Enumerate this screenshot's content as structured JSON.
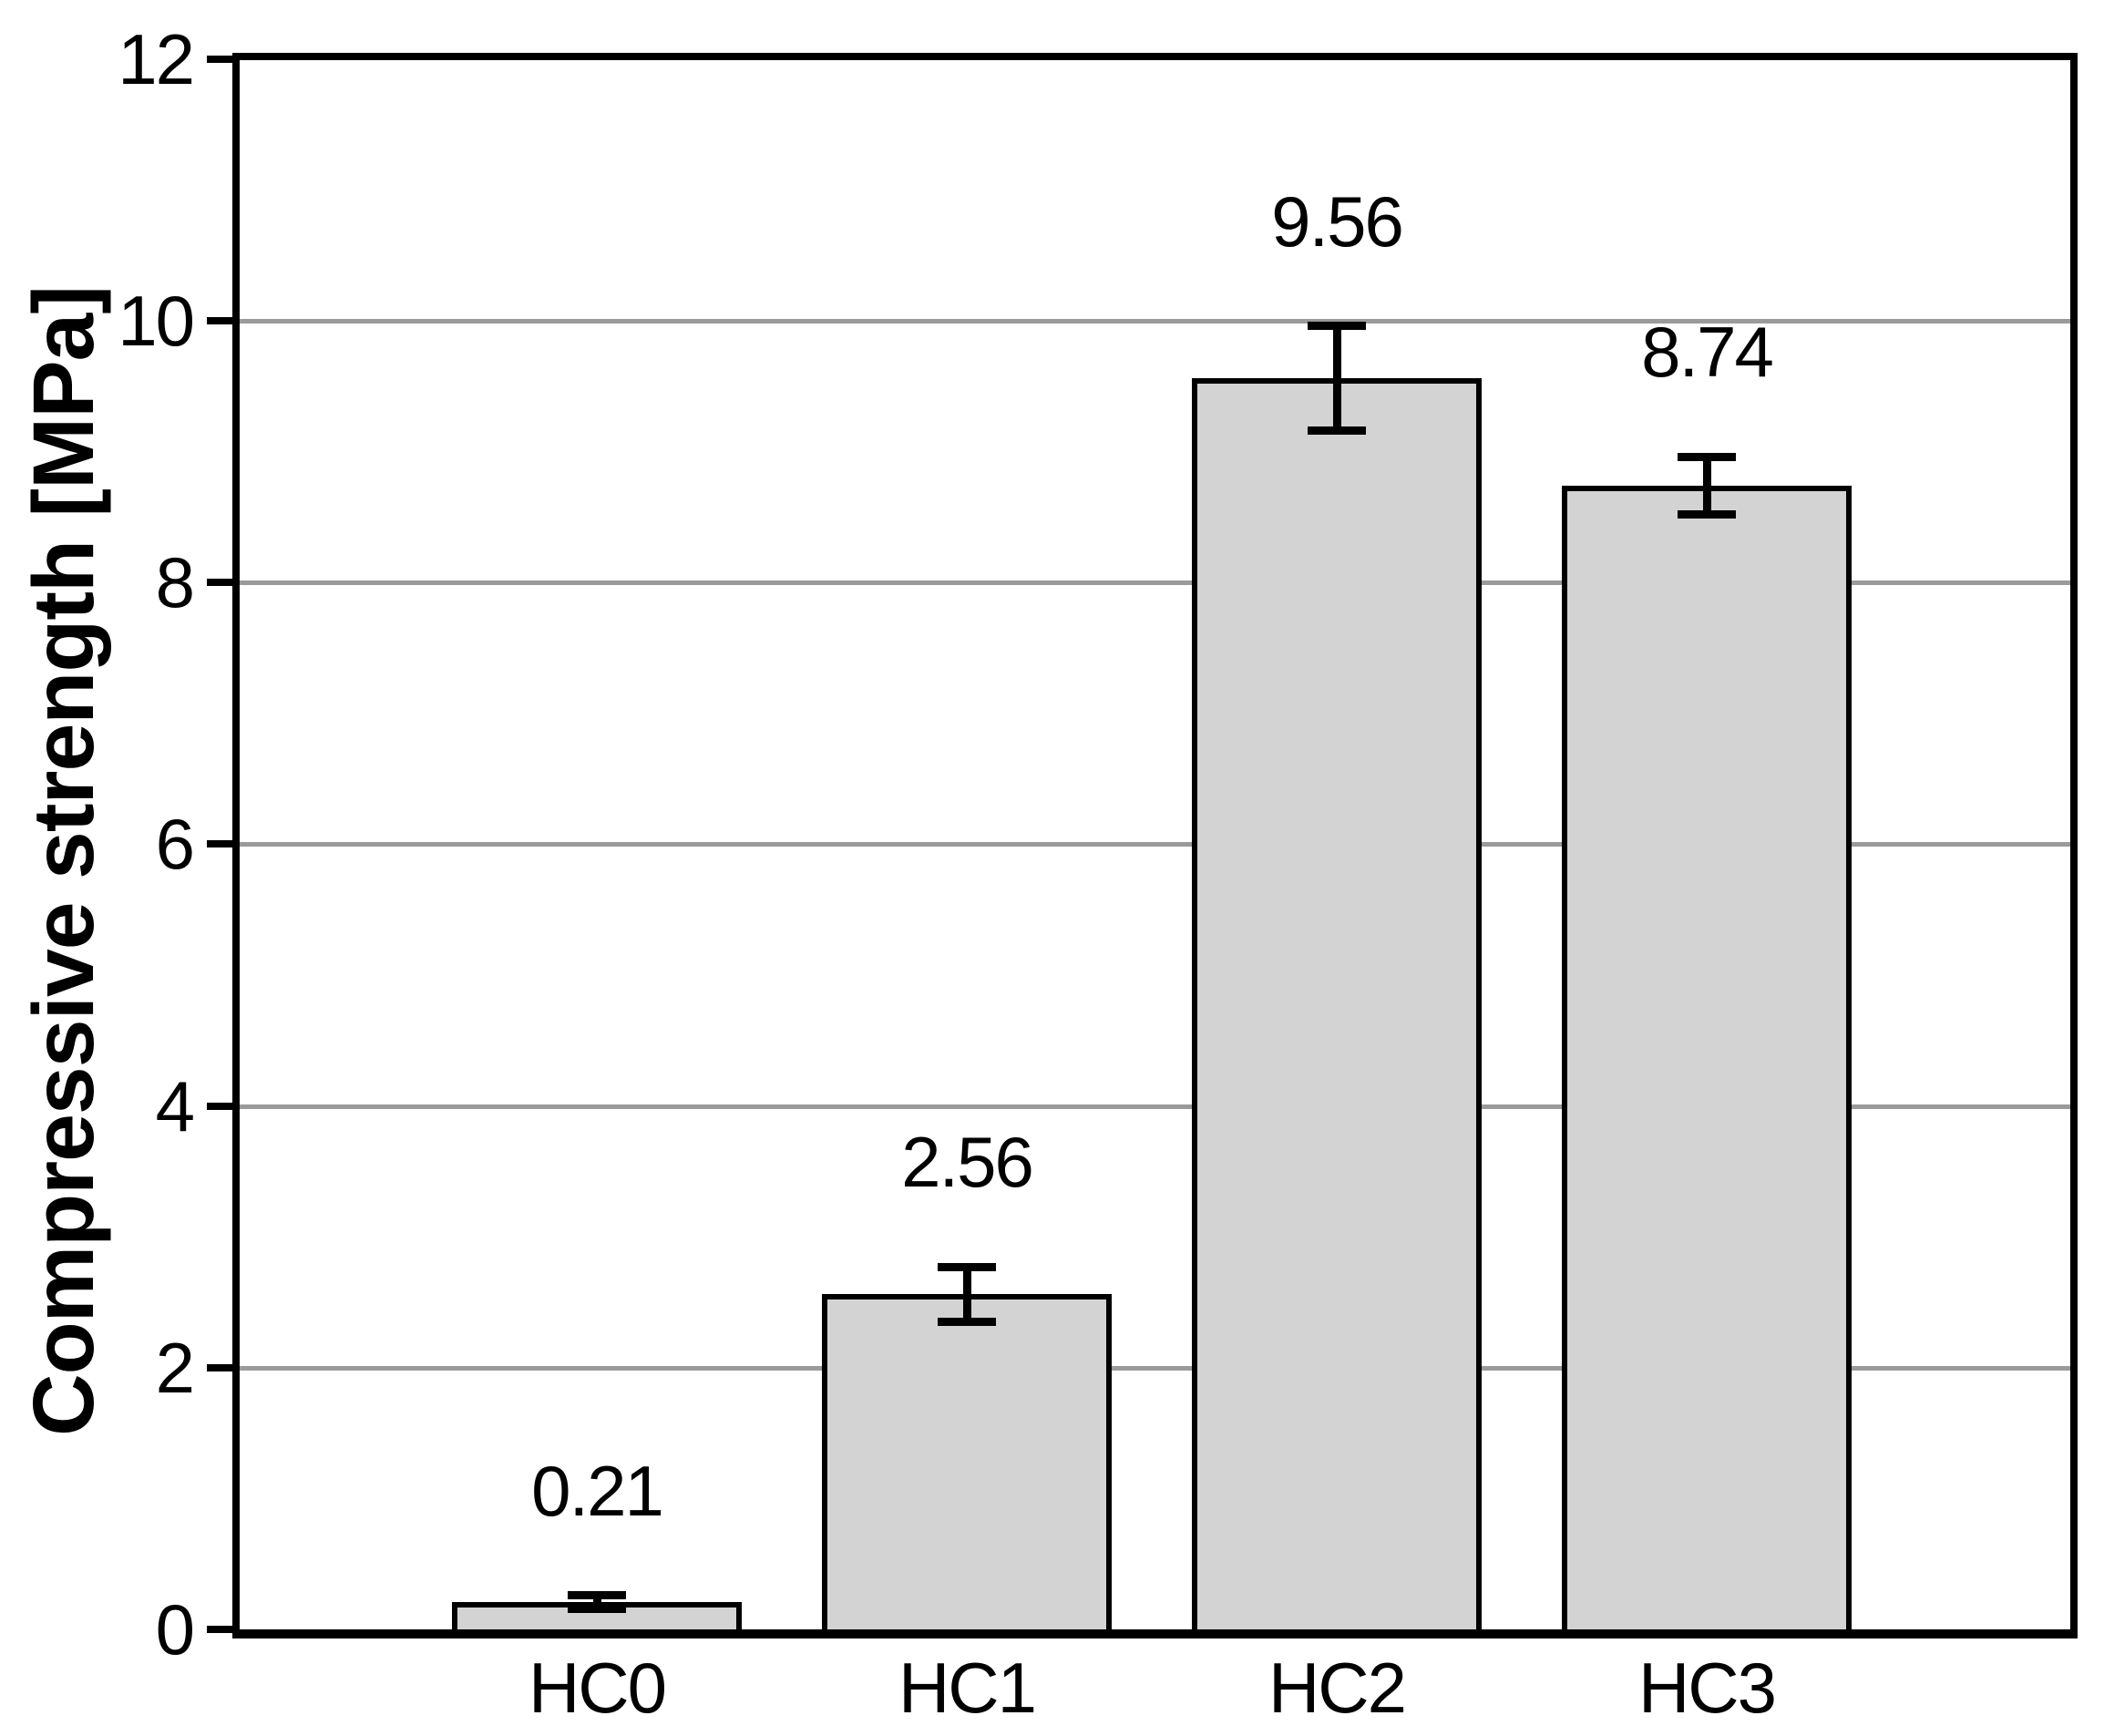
{
  "chart_data": {
    "type": "bar",
    "title": "",
    "xlabel": "",
    "ylabel": "Compressive strength [MPa]",
    "categories": [
      "HC0",
      "HC1",
      "HC2",
      "HC3"
    ],
    "values": [
      0.21,
      2.56,
      9.56,
      8.74
    ],
    "value_labels": [
      "0.21",
      "2.56",
      "9.56",
      "8.74"
    ],
    "errors": [
      0.05,
      0.21,
      0.4,
      0.22
    ],
    "ylim": [
      0,
      12
    ],
    "yticks": [
      0,
      2,
      4,
      6,
      8,
      10,
      12
    ],
    "ytick_labels": [
      "0",
      "2",
      "4",
      "6",
      "8",
      "10",
      "12"
    ],
    "grid_values": [
      2,
      4,
      6,
      8,
      10
    ],
    "grid_on": true,
    "legend_position": "none",
    "colors": {
      "bar_fill": "#d3d3d3",
      "bar_border": "#000000",
      "grid": "#9a9a9a",
      "axis": "#000000",
      "background": "#ffffff",
      "text": "#000000"
    }
  }
}
